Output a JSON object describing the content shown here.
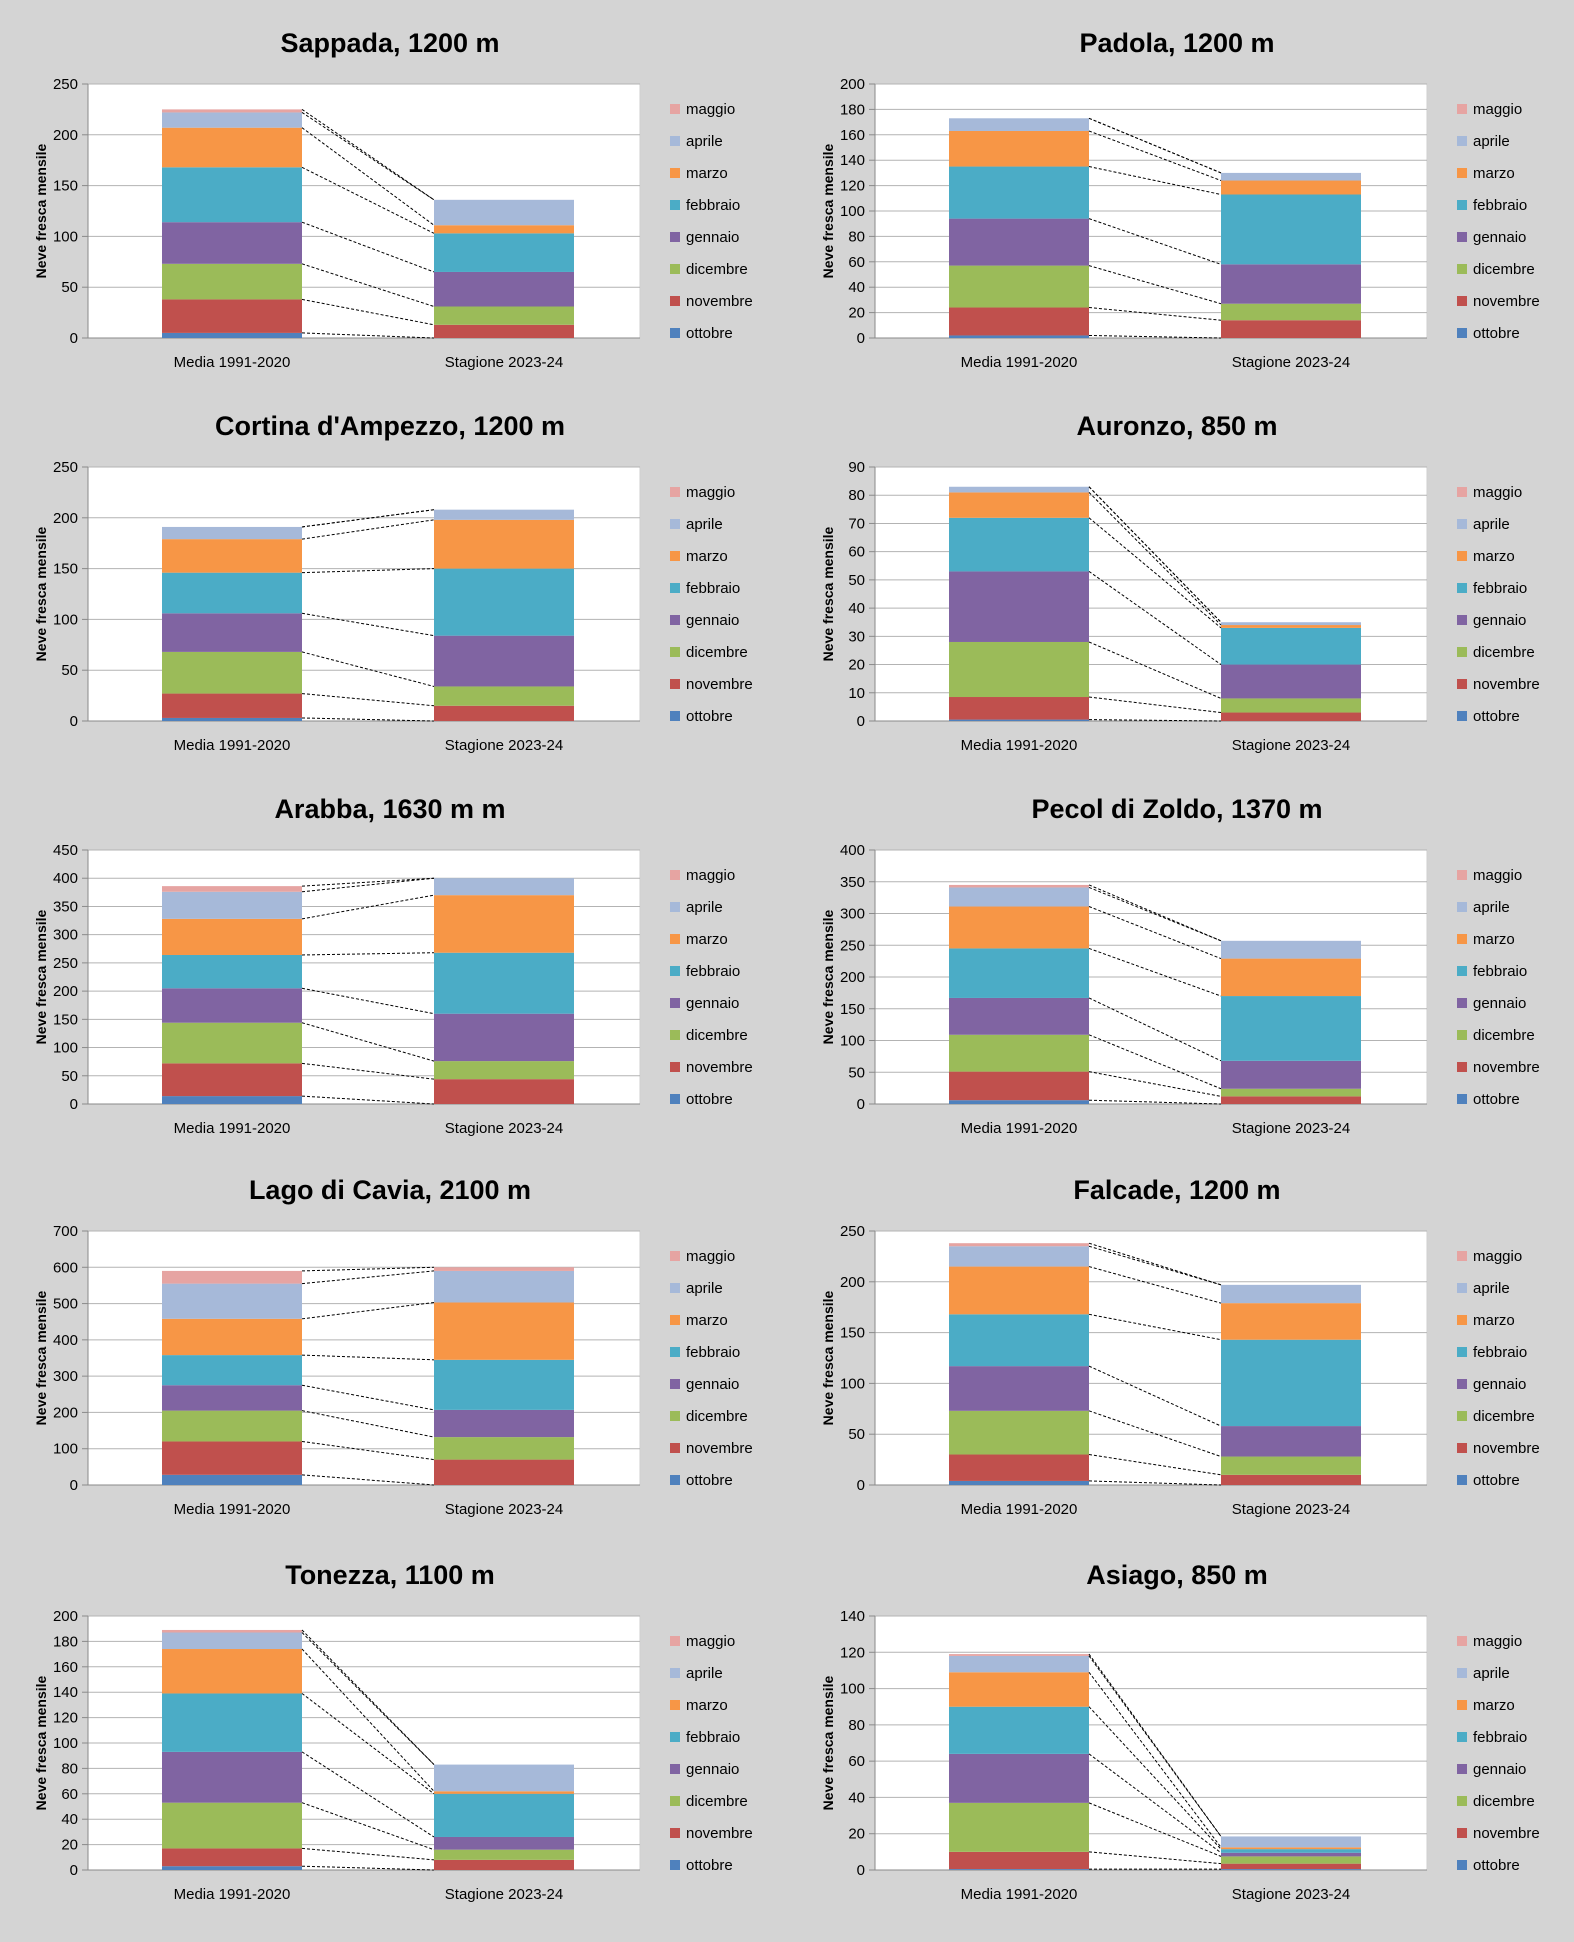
{
  "chart_data": [
    {
      "type": "bar",
      "stacked": true,
      "title": "Sappada, 1200 m",
      "ylabel": "Neve fresca mensile",
      "xlabel": "",
      "ylim": [
        0,
        250
      ],
      "ytick_step": 50,
      "categories": [
        "Media 1991-2020",
        "Stagione 2023-24"
      ],
      "series": [
        {
          "name": "ottobre",
          "values": [
            5,
            0
          ]
        },
        {
          "name": "novembre",
          "values": [
            33,
            13
          ]
        },
        {
          "name": "dicembre",
          "values": [
            35,
            18
          ]
        },
        {
          "name": "gennaio",
          "values": [
            41,
            34
          ]
        },
        {
          "name": "febbraio",
          "values": [
            54,
            38
          ]
        },
        {
          "name": "marzo",
          "values": [
            39,
            8
          ]
        },
        {
          "name": "aprile",
          "values": [
            15,
            25
          ]
        },
        {
          "name": "maggio",
          "values": [
            3,
            0
          ]
        }
      ]
    },
    {
      "type": "bar",
      "stacked": true,
      "title": "Padola, 1200 m",
      "ylabel": "Neve fresca mensile",
      "xlabel": "",
      "ylim": [
        0,
        200
      ],
      "ytick_step": 20,
      "categories": [
        "Media 1991-2020",
        "Stagione 2023-24"
      ],
      "series": [
        {
          "name": "ottobre",
          "values": [
            2,
            0
          ]
        },
        {
          "name": "novembre",
          "values": [
            22,
            14
          ]
        },
        {
          "name": "dicembre",
          "values": [
            33,
            13
          ]
        },
        {
          "name": "gennaio",
          "values": [
            37,
            31
          ]
        },
        {
          "name": "febbraio",
          "values": [
            41,
            55
          ]
        },
        {
          "name": "marzo",
          "values": [
            28,
            11
          ]
        },
        {
          "name": "aprile",
          "values": [
            10,
            6
          ]
        },
        {
          "name": "maggio",
          "values": [
            0,
            0
          ]
        }
      ]
    },
    {
      "type": "bar",
      "stacked": true,
      "title": "Cortina d'Ampezzo, 1200 m",
      "ylabel": "Neve fresca mensile",
      "xlabel": "",
      "ylim": [
        0,
        250
      ],
      "ytick_step": 50,
      "categories": [
        "Media 1991-2020",
        "Stagione 2023-24"
      ],
      "series": [
        {
          "name": "ottobre",
          "values": [
            3,
            0
          ]
        },
        {
          "name": "novembre",
          "values": [
            24,
            15
          ]
        },
        {
          "name": "dicembre",
          "values": [
            41,
            19
          ]
        },
        {
          "name": "gennaio",
          "values": [
            38,
            50
          ]
        },
        {
          "name": "febbraio",
          "values": [
            40,
            66
          ]
        },
        {
          "name": "marzo",
          "values": [
            33,
            48
          ]
        },
        {
          "name": "aprile",
          "values": [
            12,
            10
          ]
        },
        {
          "name": "maggio",
          "values": [
            0,
            0
          ]
        }
      ]
    },
    {
      "type": "bar",
      "stacked": true,
      "title": "Auronzo, 850 m",
      "ylabel": "Neve fresca mensile",
      "xlabel": "",
      "ylim": [
        0,
        90
      ],
      "ytick_step": 10,
      "categories": [
        "Media 1991-2020",
        "Stagione 2023-24"
      ],
      "series": [
        {
          "name": "ottobre",
          "values": [
            0.5,
            0
          ]
        },
        {
          "name": "novembre",
          "values": [
            8,
            3
          ]
        },
        {
          "name": "dicembre",
          "values": [
            19.5,
            5
          ]
        },
        {
          "name": "gennaio",
          "values": [
            25,
            12
          ]
        },
        {
          "name": "febbraio",
          "values": [
            19,
            13
          ]
        },
        {
          "name": "marzo",
          "values": [
            9,
            1
          ]
        },
        {
          "name": "aprile",
          "values": [
            2,
            1
          ]
        },
        {
          "name": "maggio",
          "values": [
            0,
            0
          ]
        }
      ]
    },
    {
      "type": "bar",
      "stacked": true,
      "title": "Arabba, 1630 m m",
      "ylabel": "Neve fresca mensile",
      "xlabel": "",
      "ylim": [
        0,
        450
      ],
      "ytick_step": 50,
      "categories": [
        "Media 1991-2020",
        "Stagione 2023-24"
      ],
      "series": [
        {
          "name": "ottobre",
          "values": [
            14,
            0
          ]
        },
        {
          "name": "novembre",
          "values": [
            58,
            44
          ]
        },
        {
          "name": "dicembre",
          "values": [
            72,
            32
          ]
        },
        {
          "name": "gennaio",
          "values": [
            61,
            84
          ]
        },
        {
          "name": "febbraio",
          "values": [
            59,
            108
          ]
        },
        {
          "name": "marzo",
          "values": [
            64,
            102
          ]
        },
        {
          "name": "aprile",
          "values": [
            48,
            30
          ]
        },
        {
          "name": "maggio",
          "values": [
            10,
            0
          ]
        }
      ]
    },
    {
      "type": "bar",
      "stacked": true,
      "title": "Pecol di Zoldo, 1370 m",
      "ylabel": "Neve fresca mensile",
      "xlabel": "",
      "ylim": [
        0,
        400
      ],
      "ytick_step": 50,
      "categories": [
        "Media 1991-2020",
        "Stagione 2023-24"
      ],
      "series": [
        {
          "name": "ottobre",
          "values": [
            6,
            0
          ]
        },
        {
          "name": "novembre",
          "values": [
            45,
            12
          ]
        },
        {
          "name": "dicembre",
          "values": [
            58,
            12
          ]
        },
        {
          "name": "gennaio",
          "values": [
            58,
            44
          ]
        },
        {
          "name": "febbraio",
          "values": [
            78,
            102
          ]
        },
        {
          "name": "marzo",
          "values": [
            66,
            59
          ]
        },
        {
          "name": "aprile",
          "values": [
            30,
            28
          ]
        },
        {
          "name": "maggio",
          "values": [
            4,
            0
          ]
        }
      ]
    },
    {
      "type": "bar",
      "stacked": true,
      "title": "Lago di Cavia, 2100 m",
      "ylabel": "Neve fresca mensile",
      "xlabel": "",
      "ylim": [
        0,
        700
      ],
      "ytick_step": 100,
      "categories": [
        "Media 1991-2020",
        "Stagione 2023-24"
      ],
      "series": [
        {
          "name": "ottobre",
          "values": [
            28,
            0
          ]
        },
        {
          "name": "novembre",
          "values": [
            92,
            70
          ]
        },
        {
          "name": "dicembre",
          "values": [
            85,
            62
          ]
        },
        {
          "name": "gennaio",
          "values": [
            70,
            75
          ]
        },
        {
          "name": "febbraio",
          "values": [
            83,
            138
          ]
        },
        {
          "name": "marzo",
          "values": [
            100,
            158
          ]
        },
        {
          "name": "aprile",
          "values": [
            97,
            87
          ]
        },
        {
          "name": "maggio",
          "values": [
            35,
            10
          ]
        }
      ]
    },
    {
      "type": "bar",
      "stacked": true,
      "title": "Falcade, 1200 m",
      "ylabel": "Neve fresca mensile",
      "xlabel": "",
      "ylim": [
        0,
        250
      ],
      "ytick_step": 50,
      "categories": [
        "Media 1991-2020",
        "Stagione 2023-24"
      ],
      "series": [
        {
          "name": "ottobre",
          "values": [
            4,
            0
          ]
        },
        {
          "name": "novembre",
          "values": [
            26,
            10
          ]
        },
        {
          "name": "dicembre",
          "values": [
            43,
            18
          ]
        },
        {
          "name": "gennaio",
          "values": [
            44,
            30
          ]
        },
        {
          "name": "febbraio",
          "values": [
            51,
            85
          ]
        },
        {
          "name": "marzo",
          "values": [
            47,
            36
          ]
        },
        {
          "name": "aprile",
          "values": [
            20,
            18
          ]
        },
        {
          "name": "maggio",
          "values": [
            3,
            0
          ]
        }
      ]
    },
    {
      "type": "bar",
      "stacked": true,
      "title": "Tonezza, 1100 m",
      "ylabel": "Neve fresca mensile",
      "xlabel": "",
      "ylim": [
        0,
        200
      ],
      "ytick_step": 20,
      "categories": [
        "Media 1991-2020",
        "Stagione 2023-24"
      ],
      "series": [
        {
          "name": "ottobre",
          "values": [
            3,
            0
          ]
        },
        {
          "name": "novembre",
          "values": [
            14,
            8
          ]
        },
        {
          "name": "dicembre",
          "values": [
            36,
            8
          ]
        },
        {
          "name": "gennaio",
          "values": [
            40,
            10
          ]
        },
        {
          "name": "febbraio",
          "values": [
            46,
            34
          ]
        },
        {
          "name": "marzo",
          "values": [
            35,
            2
          ]
        },
        {
          "name": "aprile",
          "values": [
            13,
            21
          ]
        },
        {
          "name": "maggio",
          "values": [
            2,
            0
          ]
        }
      ]
    },
    {
      "type": "bar",
      "stacked": true,
      "title": "Asiago, 850 m",
      "ylabel": "Neve fresca mensile",
      "xlabel": "",
      "ylim": [
        0,
        140
      ],
      "ytick_step": 20,
      "categories": [
        "Media 1991-2020",
        "Stagione 2023-24"
      ],
      "series": [
        {
          "name": "ottobre",
          "values": [
            0.5,
            0.5
          ]
        },
        {
          "name": "novembre",
          "values": [
            9.5,
            3
          ]
        },
        {
          "name": "dicembre",
          "values": [
            27,
            4
          ]
        },
        {
          "name": "gennaio",
          "values": [
            27,
            2
          ]
        },
        {
          "name": "febbraio",
          "values": [
            26,
            2
          ]
        },
        {
          "name": "marzo",
          "values": [
            19,
            1
          ]
        },
        {
          "name": "aprile",
          "values": [
            9,
            6
          ]
        },
        {
          "name": "maggio",
          "values": [
            1,
            0
          ]
        }
      ]
    }
  ],
  "colors": {
    "ottobre": "#4f81bd",
    "novembre": "#c0504d",
    "dicembre": "#9bbb59",
    "gennaio": "#8064a2",
    "febbraio": "#4bacc6",
    "marzo": "#f79646",
    "aprile": "#a6b9d9",
    "maggio": "#e6a4a2",
    "background": "#d4d4d4",
    "plot_background": "#ffffff",
    "gridline": "#b3b3b3",
    "connector": "#000000"
  }
}
